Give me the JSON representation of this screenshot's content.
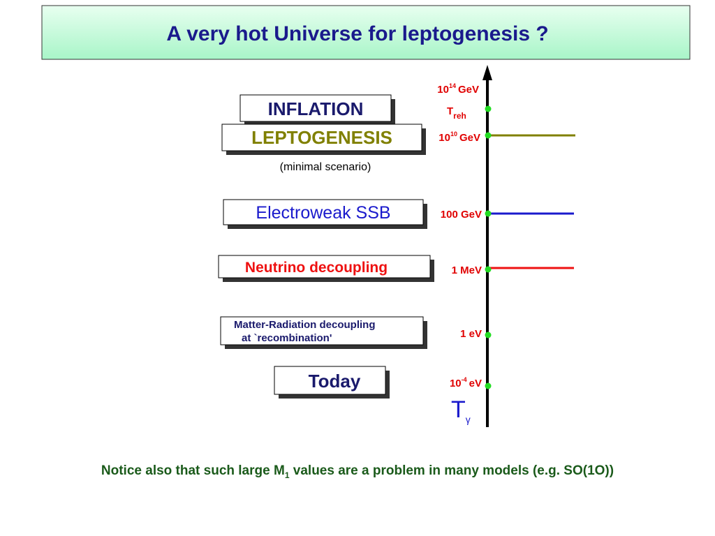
{
  "header": {
    "title": "A very hot Universe for leptogenesis ?"
  },
  "stages": [
    {
      "label": "INFLATION"
    },
    {
      "label": "LEPTOGENESIS",
      "note": "(minimal scenario)"
    },
    {
      "label": "Electroweak SSB"
    },
    {
      "label": "Neutrino decoupling"
    },
    {
      "lines": [
        "Matter-Radiation decoupling",
        "at `recombination'"
      ]
    },
    {
      "label": "Today"
    }
  ],
  "axis": {
    "ticks": [
      {
        "base": "10",
        "exp": "14",
        "unit": "GeV"
      },
      {
        "symbol": "T",
        "sub": "reh"
      },
      {
        "base": "10",
        "exp": "10",
        "unit": "GeV"
      },
      {
        "label": "100 GeV"
      },
      {
        "label": "1 MeV"
      },
      {
        "label": "1 eV"
      },
      {
        "base": "10",
        "exp": "-4",
        "unit": "eV"
      }
    ],
    "title": {
      "symbol": "T",
      "sub": "γ"
    }
  },
  "footer": {
    "before": "Notice also that such large M",
    "sub": "1",
    "after": " values are a problem in many models (e.g. SO(1O))"
  }
}
